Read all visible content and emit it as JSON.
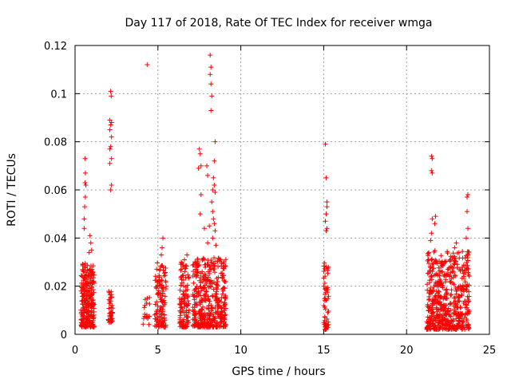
{
  "chart_data": {
    "type": "scatter",
    "title": "Day 117 of 2018, Rate Of TEC Index for receiver wmga",
    "xlabel": "GPS time / hours",
    "ylabel": "ROTI / TECUs",
    "xlim": [
      0,
      25
    ],
    "ylim": [
      0,
      0.12
    ],
    "x_ticks": [
      "0",
      "5",
      "10",
      "15",
      "20",
      "25"
    ],
    "y_ticks": [
      "0",
      "0.02",
      "0.04",
      "0.06",
      "0.08",
      "0.1",
      "0.12"
    ],
    "grid": true,
    "legend": "none",
    "marker": "+",
    "marker_color": "#ff0000",
    "clusters": [
      {
        "x_range": [
          0.35,
          1.15
        ],
        "y_base": [
          0.003,
          0.03
        ],
        "density": 260,
        "high_points": [
          [
            0.6,
            0.073
          ],
          [
            0.62,
            0.067
          ],
          [
            0.6,
            0.063
          ],
          [
            0.65,
            0.062
          ],
          [
            0.62,
            0.057
          ],
          [
            0.58,
            0.053
          ],
          [
            0.55,
            0.048
          ],
          [
            0.55,
            0.044
          ],
          [
            0.9,
            0.041
          ],
          [
            0.95,
            0.038
          ],
          [
            1.0,
            0.035
          ],
          [
            0.85,
            0.034
          ]
        ]
      },
      {
        "x_range": [
          2.0,
          2.3
        ],
        "y_base": [
          0.005,
          0.018
        ],
        "density": 45,
        "high_points": [
          [
            2.15,
            0.101
          ],
          [
            2.18,
            0.099
          ],
          [
            2.1,
            0.089
          ],
          [
            2.2,
            0.088
          ],
          [
            2.15,
            0.087
          ],
          [
            2.1,
            0.085
          ],
          [
            2.2,
            0.082
          ],
          [
            2.15,
            0.078
          ],
          [
            2.1,
            0.077
          ],
          [
            2.2,
            0.073
          ],
          [
            2.1,
            0.071
          ],
          [
            2.2,
            0.062
          ],
          [
            2.15,
            0.06
          ]
        ]
      },
      {
        "x_range": [
          4.1,
          4.5
        ],
        "y_base": [
          0.004,
          0.016
        ],
        "density": 18,
        "high_points": [
          [
            4.35,
            0.112
          ]
        ]
      },
      {
        "x_range": [
          4.8,
          5.5
        ],
        "y_base": [
          0.003,
          0.03
        ],
        "density": 120,
        "high_points": [
          [
            5.3,
            0.04
          ],
          [
            5.25,
            0.036
          ],
          [
            5.2,
            0.033
          ]
        ]
      },
      {
        "x_range": [
          6.3,
          6.9
        ],
        "y_base": [
          0.003,
          0.03
        ],
        "density": 110,
        "high_points": [
          [
            6.75,
            0.033
          ],
          [
            6.6,
            0.031
          ]
        ]
      },
      {
        "x_range": [
          7.1,
          9.1
        ],
        "y_base": [
          0.003,
          0.032
        ],
        "density": 420,
        "high_points": [
          [
            8.15,
            0.116
          ],
          [
            8.2,
            0.111
          ],
          [
            8.15,
            0.108
          ],
          [
            8.2,
            0.104
          ],
          [
            8.25,
            0.099
          ],
          [
            8.2,
            0.093
          ],
          [
            7.5,
            0.077
          ],
          [
            7.55,
            0.075
          ],
          [
            8.45,
            0.08
          ],
          [
            7.45,
            0.069
          ],
          [
            7.6,
            0.07
          ],
          [
            7.95,
            0.07
          ],
          [
            8.4,
            0.072
          ],
          [
            8.0,
            0.066
          ],
          [
            8.35,
            0.065
          ],
          [
            8.4,
            0.062
          ],
          [
            8.3,
            0.06
          ],
          [
            8.45,
            0.059
          ],
          [
            7.6,
            0.058
          ],
          [
            8.25,
            0.055
          ],
          [
            8.3,
            0.051
          ],
          [
            7.55,
            0.05
          ],
          [
            8.35,
            0.048
          ],
          [
            8.4,
            0.046
          ],
          [
            8.1,
            0.045
          ],
          [
            7.8,
            0.044
          ],
          [
            8.45,
            0.043
          ],
          [
            8.3,
            0.04
          ],
          [
            8.0,
            0.038
          ],
          [
            8.5,
            0.037
          ]
        ]
      },
      {
        "x_range": [
          15.0,
          15.3
        ],
        "y_base": [
          0.002,
          0.03
        ],
        "density": 55,
        "high_points": [
          [
            15.1,
            0.079
          ],
          [
            15.15,
            0.065
          ],
          [
            15.2,
            0.055
          ],
          [
            15.2,
            0.053
          ],
          [
            15.15,
            0.05
          ],
          [
            15.1,
            0.047
          ],
          [
            15.2,
            0.044
          ],
          [
            15.15,
            0.043
          ]
        ]
      },
      {
        "x_range": [
          21.2,
          23.8
        ],
        "y_base": [
          0.002,
          0.035
        ],
        "density": 560,
        "high_points": [
          [
            21.5,
            0.074
          ],
          [
            21.55,
            0.073
          ],
          [
            21.5,
            0.068
          ],
          [
            21.55,
            0.067
          ],
          [
            21.75,
            0.049
          ],
          [
            21.55,
            0.048
          ],
          [
            21.7,
            0.046
          ],
          [
            21.5,
            0.042
          ],
          [
            21.45,
            0.039
          ],
          [
            23.7,
            0.058
          ],
          [
            23.65,
            0.057
          ],
          [
            23.65,
            0.051
          ],
          [
            23.7,
            0.044
          ],
          [
            23.6,
            0.04
          ],
          [
            23.0,
            0.038
          ],
          [
            22.9,
            0.036
          ]
        ]
      }
    ]
  }
}
